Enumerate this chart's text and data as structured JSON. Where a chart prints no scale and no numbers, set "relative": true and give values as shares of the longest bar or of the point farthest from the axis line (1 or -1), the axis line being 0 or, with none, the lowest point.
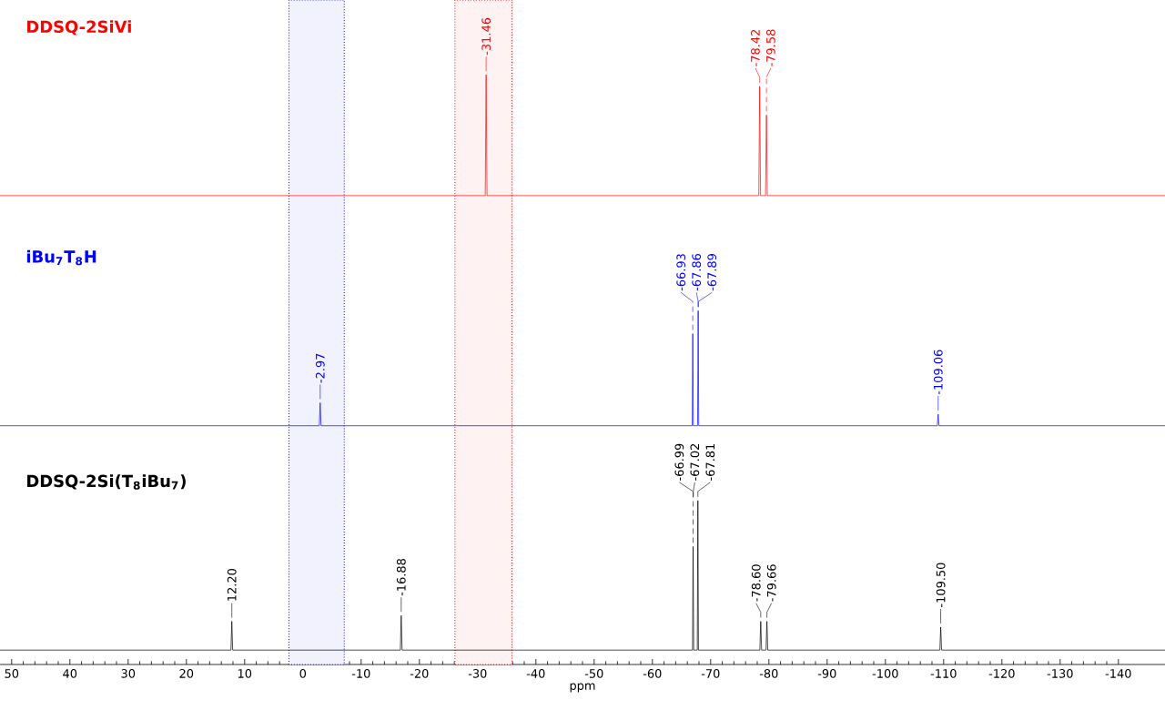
{
  "chart_data": {
    "type": "line",
    "relative": true,
    "xlabel": "ppm",
    "xlim": [
      52,
      -148
    ],
    "xticks": [
      50,
      40,
      30,
      20,
      10,
      0,
      -10,
      -20,
      -30,
      -40,
      -50,
      -60,
      -70,
      -80,
      -90,
      -100,
      -110,
      -120,
      -130,
      -140
    ],
    "series": [
      {
        "name": "DDSQ-2SiVi",
        "color": "#ff0000",
        "x": [
          52,
          -31.31,
          -31.46,
          -31.61,
          -78.27,
          -78.42,
          -78.57,
          -79.43,
          -79.58,
          -79.73,
          -148
        ],
        "values": [
          0.79,
          0.79,
          1.0,
          0.79,
          0.79,
          0.98,
          0.79,
          0.79,
          0.93,
          0.79,
          0.79
        ]
      },
      {
        "name": "iBu$_{7}$T$_{8}$H",
        "color": "#0000ff",
        "x": [
          52,
          -2.82,
          -2.97,
          -3.12,
          -66.83,
          -66.93,
          -67.03,
          -67.76,
          -67.86,
          -67.96,
          -108.91,
          -109.06,
          -109.21,
          -148
        ],
        "values": [
          0.39,
          0.39,
          0.43,
          0.39,
          0.39,
          0.55,
          0.39,
          0.39,
          0.59,
          0.39,
          0.39,
          0.41,
          0.39,
          0.39
        ]
      },
      {
        "name": "DDSQ-2Si(T$_{8}$iBu$_{7}$)",
        "color": "#000000",
        "x": [
          52,
          12.35,
          12.2,
          12.05,
          -16.73,
          -16.88,
          -17.03,
          -66.89,
          -66.99,
          -67.09,
          -67.71,
          -67.81,
          -67.91,
          -78.45,
          -78.6,
          -78.75,
          -79.51,
          -79.66,
          -79.81,
          -109.35,
          -109.5,
          -109.65,
          -148
        ],
        "values": [
          0,
          0,
          0.05,
          0,
          0,
          0.06,
          0,
          0,
          0.18,
          0,
          0,
          0.26,
          0,
          0,
          0.05,
          0,
          0,
          0.05,
          0,
          0,
          0.04,
          0,
          0
        ]
      }
    ],
    "annotations": [
      {
        "text": "-31.46",
        "x": -31.46,
        "y": 1.0
      },
      {
        "text": "-78.42",
        "x": -78.42,
        "y": 0.98
      },
      {
        "text": "-79.58",
        "x": -79.58,
        "y": 0.93
      },
      {
        "text": "-2.97",
        "x": -2.97,
        "y": 0.43
      },
      {
        "text": "-66.93",
        "x": -66.93,
        "y": 0.55
      },
      {
        "text": "-67.86",
        "x": -67.86,
        "y": 0.59
      },
      {
        "text": "-67.89",
        "x": -67.89,
        "y": 0.59
      },
      {
        "text": "-109.06",
        "x": -109.06,
        "y": 0.41
      },
      {
        "text": "12.20",
        "x": 12.2,
        "y": 0.05
      },
      {
        "text": "-16.88",
        "x": -16.88,
        "y": 0.06
      },
      {
        "text": "-66.99",
        "x": -66.99,
        "y": 0.18
      },
      {
        "text": "-67.02",
        "x": -67.02,
        "y": 0.26
      },
      {
        "text": "-67.81",
        "x": -67.81,
        "y": 0.26
      },
      {
        "text": "-78.60",
        "x": -78.6,
        "y": 0.05
      },
      {
        "text": "-79.66",
        "x": -79.66,
        "y": 0.05
      },
      {
        "text": "-109.50",
        "x": -109.5,
        "y": 0.04
      }
    ],
    "bands": [
      {
        "axis": "x",
        "from": -26.1,
        "to": -35.9,
        "color": "#ff0000"
      },
      {
        "axis": "x",
        "from": 2.4,
        "to": -7.1,
        "color": "#0000ff"
      }
    ]
  }
}
